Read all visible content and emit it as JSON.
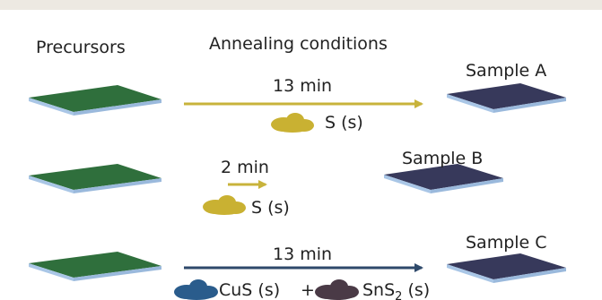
{
  "headers": {
    "precursors": "Precursors",
    "annealing": "Annealing conditions"
  },
  "rows": [
    {
      "time": "13 min",
      "sulfur": "S (s)",
      "sample": "Sample A"
    },
    {
      "time": "2 min",
      "sulfur": "S (s)",
      "sample": "Sample B"
    },
    {
      "time": "13 min",
      "source_cus": "CuS (s)",
      "plus": "+",
      "source_sns2_base": "SnS",
      "source_sns2_sub": "2",
      "source_sns2_tail": " (s)",
      "sample": "Sample C"
    }
  ],
  "colors": {
    "top_band": "#ede9e2",
    "precursor_film": "#2f6f3c",
    "sample_film": "#37395b",
    "substrate": "#a9c6e6",
    "arrow_gold": "#c8b33b",
    "arrow_blue": "#2f4a6b",
    "sulfur_cloud": "#c9b132",
    "cus_cloud": "#2a5c8c",
    "sns2_cloud": "#4a3a46"
  }
}
